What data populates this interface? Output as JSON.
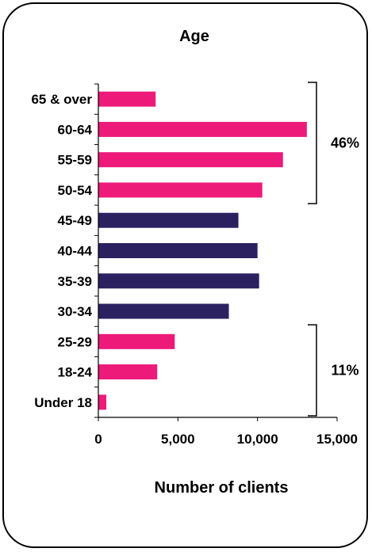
{
  "chart_data": {
    "type": "bar",
    "orientation": "horizontal",
    "title": "Age",
    "xlabel": "Number of clients",
    "ylabel": "",
    "categories": [
      "65 & over",
      "60-64",
      "55-59",
      "50-54",
      "45-49",
      "40-44",
      "35-39",
      "30-34",
      "25-29",
      "18-24",
      "Under 18"
    ],
    "values": [
      3600,
      13100,
      11600,
      10300,
      8800,
      10000,
      10100,
      8200,
      4800,
      3700,
      500
    ],
    "bar_colors": [
      "#ed1a7a",
      "#ed1a7a",
      "#ed1a7a",
      "#ed1a7a",
      "#2b2160",
      "#2b2160",
      "#2b2160",
      "#2b2160",
      "#ed1a7a",
      "#ed1a7a",
      "#ed1a7a"
    ],
    "xlim": [
      0,
      15000
    ],
    "xticks": [
      0,
      5000,
      10000,
      15000
    ],
    "xtick_labels": [
      "0",
      "5,000",
      "10,000",
      "15,000"
    ],
    "grid": false,
    "annotations": [
      {
        "label": "46%",
        "from_category": "65 & over",
        "to_category": "50-54"
      },
      {
        "label": "11%",
        "from_category": "25-29",
        "to_category": "Under 18"
      }
    ]
  }
}
